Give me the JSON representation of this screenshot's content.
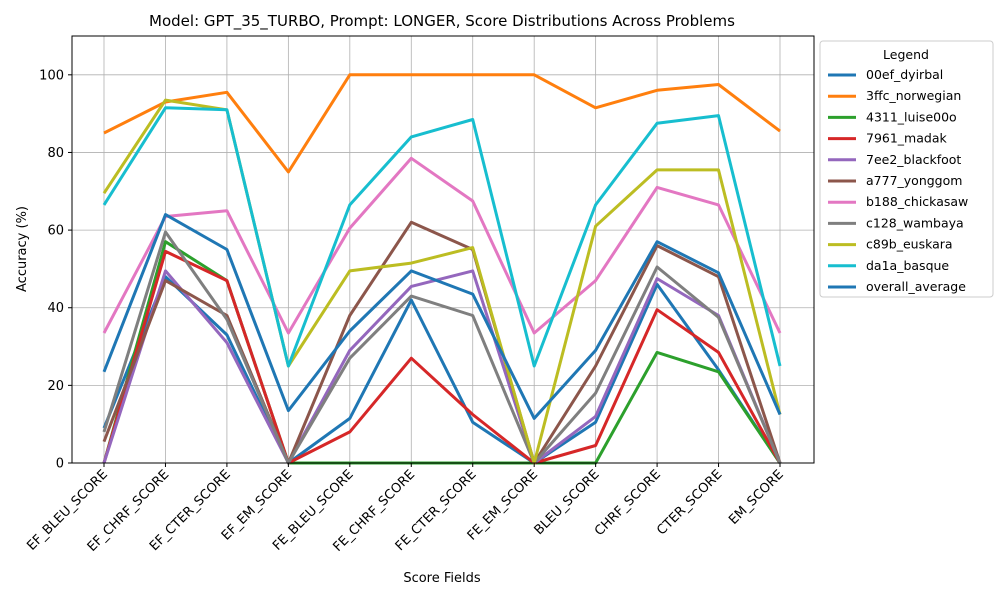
{
  "chart_data": {
    "type": "line",
    "title": "Model: GPT_35_TURBO, Prompt: LONGER, Score Distributions Across Problems",
    "xlabel": "Score Fields",
    "ylabel": "Accuracy (%)",
    "ylim": [
      0,
      110
    ],
    "yticks": [
      0,
      20,
      40,
      60,
      80,
      100
    ],
    "grid": true,
    "legend_title": "Legend",
    "legend_placement": "outside-top-right",
    "categories": [
      "EF_BLEU_SCORE",
      "EF_CHRF_SCORE",
      "EF_CTER_SCORE",
      "EF_EM_SCORE",
      "FE_BLEU_SCORE",
      "FE_CHRF_SCORE",
      "FE_CTER_SCORE",
      "FE_EM_SCORE",
      "BLEU_SCORE",
      "CHRF_SCORE",
      "CTER_SCORE",
      "EM_SCORE"
    ],
    "series": [
      {
        "name": "00ef_dyirbal",
        "color": "#1f77b4",
        "values": [
          9,
          48,
          33,
          0,
          11.5,
          42,
          10.5,
          0,
          10.5,
          46,
          24,
          0
        ]
      },
      {
        "name": "3ffc_norwegian",
        "color": "#ff7f0e",
        "values": [
          85,
          93,
          95.5,
          75,
          100,
          100,
          100,
          100,
          91.5,
          96,
          97.5,
          85.5
        ]
      },
      {
        "name": "4311_luise00o",
        "color": "#2ca02c",
        "values": [
          0,
          57,
          47,
          0,
          0,
          0,
          0,
          0,
          0,
          28.5,
          23.5,
          0
        ]
      },
      {
        "name": "7961_madak",
        "color": "#d62728",
        "values": [
          0,
          54.5,
          47,
          0,
          8,
          27,
          12.5,
          0,
          4.5,
          39.5,
          28.5,
          0
        ]
      },
      {
        "name": "7ee2_blackfoot",
        "color": "#9467bd",
        "values": [
          0,
          49.5,
          31,
          0,
          29,
          45.5,
          49.5,
          0,
          12,
          47.5,
          38,
          0
        ]
      },
      {
        "name": "a777_yonggom",
        "color": "#8c564b",
        "values": [
          5.5,
          47,
          38,
          0,
          38,
          62,
          55,
          0,
          25,
          56,
          48,
          0
        ]
      },
      {
        "name": "b188_chickasaw",
        "color": "#e377c2",
        "values": [
          33.5,
          63.5,
          65,
          33.5,
          60.5,
          78.5,
          67.5,
          33.5,
          47,
          71,
          66.5,
          33.5
        ]
      },
      {
        "name": "c128_wambaya",
        "color": "#7f7f7f",
        "values": [
          8,
          59.5,
          37,
          0,
          27,
          43,
          38,
          0,
          18,
          50.5,
          37.5,
          0
        ]
      },
      {
        "name": "c89b_euskara",
        "color": "#bcbd22",
        "values": [
          69.5,
          93.5,
          91,
          25,
          49.5,
          51.5,
          55.5,
          0,
          61,
          75.5,
          75.5,
          12.5
        ]
      },
      {
        "name": "da1a_basque",
        "color": "#17becf",
        "values": [
          66.5,
          91.5,
          91,
          25,
          66.5,
          84,
          88.5,
          25,
          66.5,
          87.5,
          89.5,
          25
        ]
      },
      {
        "name": "overall_average",
        "color": "#1f77b4",
        "values": [
          23.5,
          64,
          55,
          13.5,
          34,
          49.5,
          43.5,
          11.5,
          29,
          57,
          49,
          12.5
        ]
      }
    ]
  }
}
